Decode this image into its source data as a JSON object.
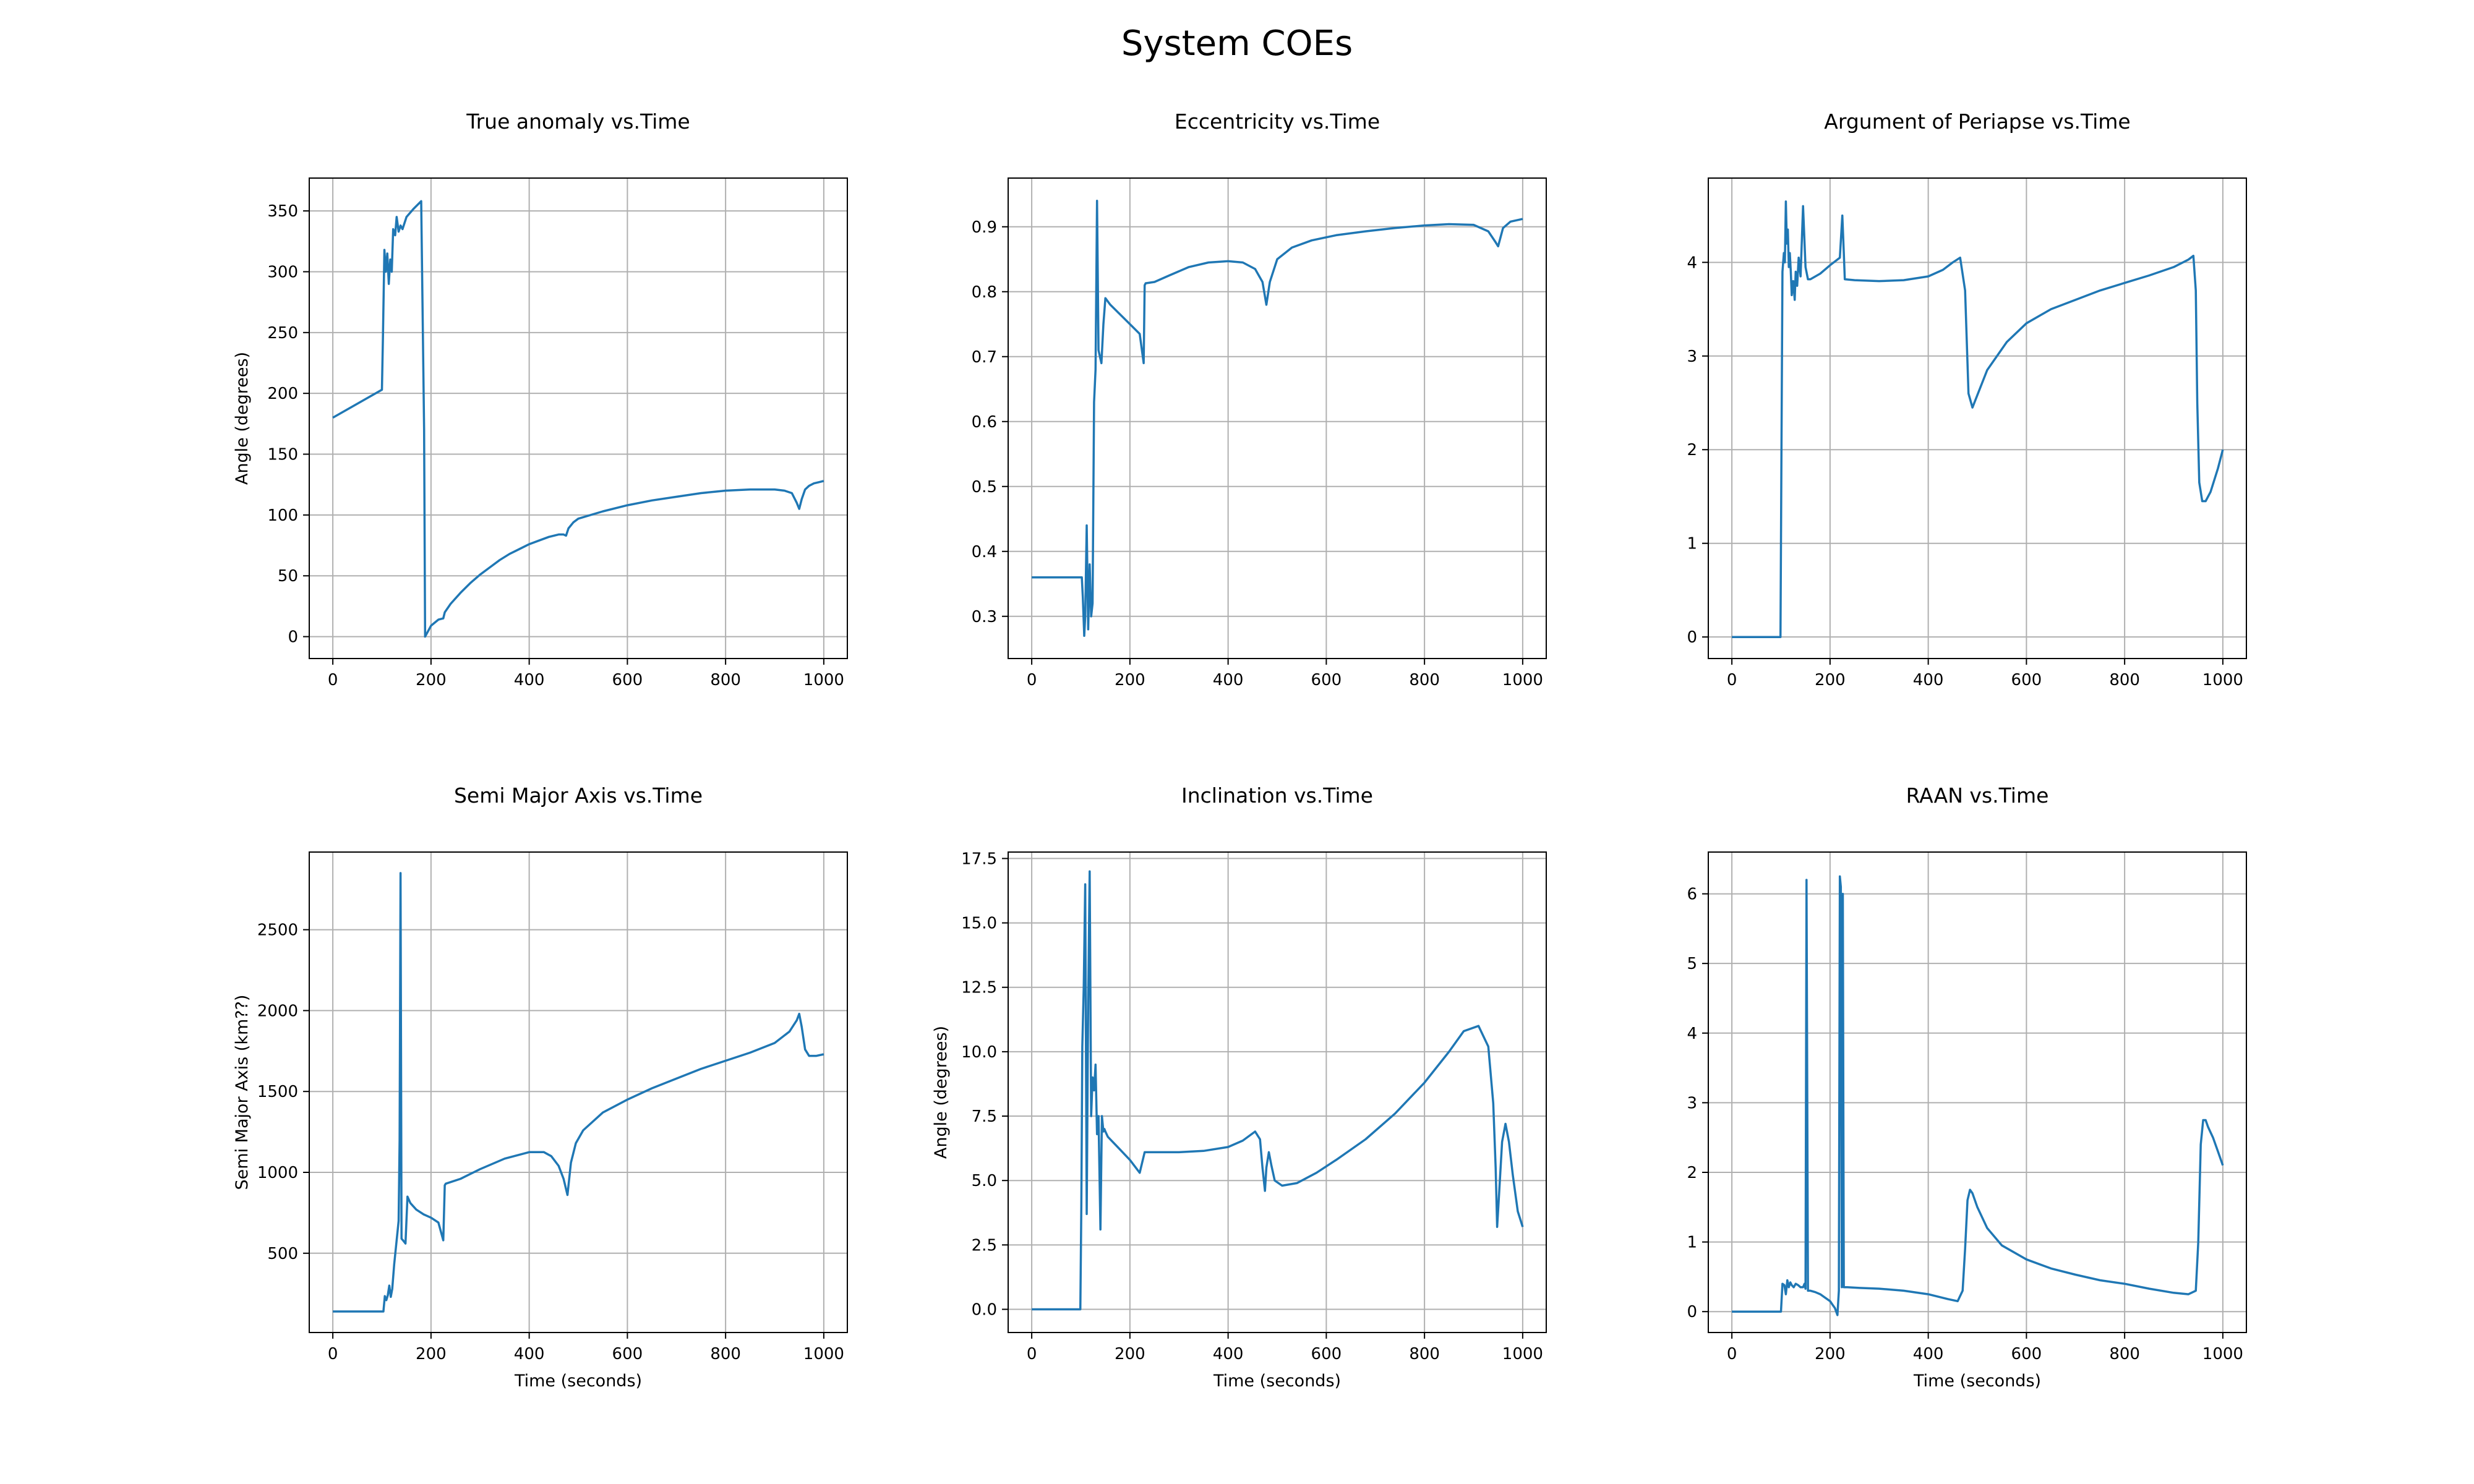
{
  "figure": {
    "suptitle": "System COEs"
  },
  "colors": {
    "line": "#1f77b4",
    "grid": "#b0b0b0",
    "axes": "#000000",
    "background": "#ffffff"
  },
  "chart_data": [
    {
      "type": "line",
      "title": "True anomaly vs.Time",
      "xlabel": "",
      "ylabel": "Angle (degrees)",
      "xlim": [
        -48,
        1048
      ],
      "ylim": [
        -18,
        377
      ],
      "xticks": [
        0,
        200,
        400,
        600,
        800,
        1000
      ],
      "yticks": [
        0,
        50,
        100,
        150,
        200,
        250,
        300,
        350
      ],
      "ytick_labels": [
        "0",
        "50",
        "100",
        "150",
        "200",
        "250",
        "300",
        "350"
      ],
      "grid": true,
      "x": [
        0,
        100,
        102,
        105,
        108,
        111,
        114,
        117,
        120,
        123,
        127,
        130,
        134,
        138,
        142,
        150,
        165,
        180,
        186,
        188,
        200,
        215,
        225,
        228,
        240,
        260,
        280,
        300,
        320,
        340,
        360,
        380,
        400,
        420,
        440,
        460,
        470,
        475,
        480,
        490,
        500,
        550,
        600,
        650,
        700,
        750,
        800,
        850,
        900,
        920,
        935,
        945,
        950,
        955,
        962,
        970,
        980,
        990,
        1000
      ],
      "y": [
        180,
        203,
        245,
        318,
        300,
        315,
        290,
        310,
        300,
        335,
        330,
        345,
        333,
        338,
        335,
        345,
        352,
        358,
        170,
        0,
        9,
        14,
        15,
        20,
        27,
        36,
        44,
        51,
        57,
        63,
        68,
        72,
        76,
        79,
        82,
        84,
        84,
        83,
        89,
        94,
        97,
        103,
        108,
        112,
        115,
        118,
        120,
        121,
        121,
        120,
        118,
        110,
        105,
        113,
        121,
        124,
        126,
        127,
        128
      ]
    },
    {
      "type": "line",
      "title": "Eccentricity vs.Time",
      "xlabel": "",
      "ylabel": "",
      "xlim": [
        -48,
        1048
      ],
      "ylim": [
        0.235,
        0.975
      ],
      "xticks": [
        0,
        200,
        400,
        600,
        800,
        1000
      ],
      "yticks": [
        0.3,
        0.4,
        0.5,
        0.6,
        0.7,
        0.8,
        0.9
      ],
      "ytick_labels": [
        "0.3",
        "0.4",
        "0.5",
        "0.6",
        "0.7",
        "0.8",
        "0.9"
      ],
      "grid": true,
      "x": [
        0,
        100,
        102,
        104,
        107,
        109,
        112,
        115,
        118,
        121,
        124,
        127,
        130,
        133,
        136,
        139,
        142,
        146,
        150,
        160,
        180,
        200,
        220,
        228,
        230,
        232,
        250,
        280,
        320,
        360,
        400,
        430,
        455,
        470,
        478,
        485,
        500,
        530,
        570,
        620,
        680,
        740,
        800,
        850,
        900,
        930,
        945,
        950,
        960,
        975,
        1000
      ],
      "y": [
        0.36,
        0.36,
        0.36,
        0.33,
        0.27,
        0.3,
        0.44,
        0.28,
        0.38,
        0.3,
        0.32,
        0.63,
        0.68,
        0.94,
        0.71,
        0.7,
        0.69,
        0.75,
        0.79,
        0.78,
        0.765,
        0.75,
        0.735,
        0.69,
        0.81,
        0.813,
        0.815,
        0.825,
        0.838,
        0.845,
        0.847,
        0.845,
        0.835,
        0.815,
        0.78,
        0.815,
        0.85,
        0.868,
        0.879,
        0.887,
        0.893,
        0.898,
        0.902,
        0.904,
        0.903,
        0.893,
        0.876,
        0.87,
        0.898,
        0.908,
        0.912
      ]
    },
    {
      "type": "line",
      "title": "Argument of Periapse vs.Time",
      "xlabel": "",
      "ylabel": "",
      "xlim": [
        -48,
        1048
      ],
      "ylim": [
        -0.23,
        4.9
      ],
      "xticks": [
        0,
        200,
        400,
        600,
        800,
        1000
      ],
      "yticks": [
        0,
        1,
        2,
        3,
        4
      ],
      "ytick_labels": [
        "0",
        "1",
        "2",
        "3",
        "4"
      ],
      "grid": true,
      "x": [
        0,
        99,
        101,
        103,
        106,
        108,
        110,
        112,
        114,
        116,
        118,
        120,
        122,
        125,
        128,
        130,
        133,
        136,
        140,
        145,
        150,
        155,
        160,
        180,
        200,
        220,
        225,
        228,
        230,
        250,
        300,
        350,
        400,
        430,
        450,
        465,
        475,
        482,
        490,
        520,
        560,
        600,
        650,
        700,
        750,
        800,
        850,
        900,
        930,
        940,
        945,
        948,
        952,
        958,
        965,
        975,
        990,
        1000
      ],
      "y": [
        0,
        0,
        2.0,
        3.9,
        4.1,
        4.0,
        4.65,
        4.2,
        4.35,
        3.95,
        4.1,
        3.9,
        3.65,
        3.8,
        3.6,
        3.9,
        3.75,
        4.05,
        3.85,
        4.6,
        3.95,
        3.82,
        3.82,
        3.88,
        3.97,
        4.05,
        4.5,
        4.1,
        3.82,
        3.81,
        3.8,
        3.81,
        3.85,
        3.92,
        4.0,
        4.05,
        3.7,
        2.6,
        2.45,
        2.85,
        3.15,
        3.35,
        3.5,
        3.6,
        3.7,
        3.78,
        3.86,
        3.95,
        4.03,
        4.07,
        3.7,
        2.5,
        1.65,
        1.45,
        1.45,
        1.55,
        1.8,
        2.0
      ]
    },
    {
      "type": "line",
      "title": "Semi Major Axis vs.Time",
      "xlabel": "Time (seconds)",
      "ylabel": "Semi Major Axis (km??)",
      "xlim": [
        -48,
        1048
      ],
      "ylim": [
        10,
        2980
      ],
      "xticks": [
        0,
        200,
        400,
        600,
        800,
        1000
      ],
      "yticks": [
        500,
        1000,
        1500,
        2000,
        2500
      ],
      "ytick_labels": [
        "500",
        "1000",
        "1500",
        "2000",
        "2500"
      ],
      "grid": true,
      "x": [
        0,
        100,
        103,
        106,
        109,
        112,
        115,
        118,
        121,
        125,
        130,
        134,
        136,
        138,
        140,
        143,
        148,
        152,
        158,
        170,
        185,
        200,
        215,
        225,
        228,
        230,
        260,
        300,
        350,
        400,
        430,
        445,
        460,
        470,
        478,
        485,
        495,
        510,
        550,
        600,
        650,
        700,
        750,
        800,
        850,
        900,
        930,
        945,
        950,
        955,
        962,
        970,
        985,
        1000
      ],
      "y": [
        140,
        140,
        140,
        235,
        210,
        240,
        300,
        230,
        280,
        430,
        580,
        700,
        1200,
        2850,
        590,
        580,
        560,
        850,
        810,
        770,
        740,
        720,
        690,
        580,
        920,
        930,
        960,
        1020,
        1085,
        1125,
        1125,
        1100,
        1040,
        960,
        860,
        1060,
        1180,
        1260,
        1370,
        1450,
        1520,
        1580,
        1640,
        1690,
        1740,
        1800,
        1870,
        1940,
        1980,
        1900,
        1760,
        1720,
        1720,
        1730
      ]
    },
    {
      "type": "line",
      "title": "Inclination vs.Time",
      "xlabel": "Time (seconds)",
      "ylabel": "Angle (degrees)",
      "xlim": [
        -48,
        1048
      ],
      "ylim": [
        -0.9,
        17.75
      ],
      "xticks": [
        0,
        200,
        400,
        600,
        800,
        1000
      ],
      "yticks": [
        0.0,
        2.5,
        5.0,
        7.5,
        10.0,
        12.5,
        15.0,
        17.5
      ],
      "ytick_labels": [
        "0.0",
        "2.5",
        "5.0",
        "7.5",
        "10.0",
        "12.5",
        "15.0",
        "17.5"
      ],
      "grid": true,
      "x": [
        0,
        99,
        101,
        103,
        106,
        109,
        112,
        115,
        118,
        121,
        124,
        127,
        130,
        133,
        136,
        140,
        143,
        146,
        148,
        150,
        155,
        175,
        200,
        220,
        230,
        233,
        260,
        300,
        350,
        400,
        430,
        455,
        465,
        470,
        475,
        478,
        483,
        488,
        495,
        510,
        540,
        580,
        620,
        680,
        740,
        800,
        850,
        880,
        910,
        930,
        940,
        945,
        948,
        952,
        958,
        965,
        972,
        980,
        990,
        1000
      ],
      "y": [
        0,
        0,
        4.0,
        10.2,
        12.5,
        16.5,
        3.7,
        12.0,
        17.0,
        7.5,
        9.0,
        8.5,
        9.5,
        6.8,
        7.5,
        3.1,
        7.5,
        6.9,
        7.0,
        6.9,
        6.7,
        6.3,
        5.8,
        5.3,
        6.1,
        6.1,
        6.1,
        6.1,
        6.15,
        6.3,
        6.55,
        6.9,
        6.6,
        5.5,
        4.6,
        5.5,
        6.1,
        5.6,
        5.0,
        4.8,
        4.9,
        5.3,
        5.8,
        6.6,
        7.6,
        8.8,
        10.0,
        10.8,
        11.0,
        10.2,
        8.0,
        5.5,
        3.2,
        4.5,
        6.5,
        7.2,
        6.5,
        5.2,
        3.8,
        3.2
      ]
    },
    {
      "type": "line",
      "title": "RAAN vs.Time",
      "xlabel": "Time (seconds)",
      "ylabel": "",
      "xlim": [
        -48,
        1048
      ],
      "ylim": [
        -0.3,
        6.6
      ],
      "xticks": [
        0,
        200,
        400,
        600,
        800,
        1000
      ],
      "yticks": [
        0,
        1,
        2,
        3,
        4,
        5,
        6
      ],
      "ytick_labels": [
        "0",
        "1",
        "2",
        "3",
        "4",
        "5",
        "6"
      ],
      "grid": true,
      "x": [
        0,
        98,
        100,
        103,
        107,
        110,
        113,
        116,
        119,
        122,
        126,
        130,
        135,
        140,
        145,
        148,
        150,
        152,
        155,
        160,
        170,
        180,
        190,
        200,
        205,
        210,
        215,
        218,
        220,
        222,
        224,
        226,
        228,
        230,
        235,
        260,
        300,
        350,
        400,
        440,
        460,
        470,
        475,
        480,
        485,
        490,
        500,
        520,
        550,
        600,
        650,
        700,
        750,
        800,
        850,
        900,
        930,
        945,
        950,
        955,
        960,
        965,
        970,
        980,
        990,
        1000
      ],
      "y": [
        0,
        0,
        0,
        0.4,
        0.38,
        0.25,
        0.45,
        0.35,
        0.42,
        0.38,
        0.35,
        0.4,
        0.38,
        0.35,
        0.35,
        0.4,
        0.33,
        6.2,
        0.3,
        0.3,
        0.28,
        0.25,
        0.2,
        0.15,
        0.1,
        0.05,
        -0.05,
        0.3,
        6.25,
        6.1,
        0.35,
        6.0,
        0.35,
        0.35,
        0.35,
        0.34,
        0.33,
        0.3,
        0.25,
        0.18,
        0.15,
        0.3,
        0.9,
        1.6,
        1.75,
        1.7,
        1.5,
        1.2,
        0.95,
        0.75,
        0.62,
        0.53,
        0.45,
        0.4,
        0.33,
        0.27,
        0.25,
        0.3,
        1.0,
        2.4,
        2.75,
        2.75,
        2.65,
        2.5,
        2.3,
        2.1
      ]
    }
  ]
}
